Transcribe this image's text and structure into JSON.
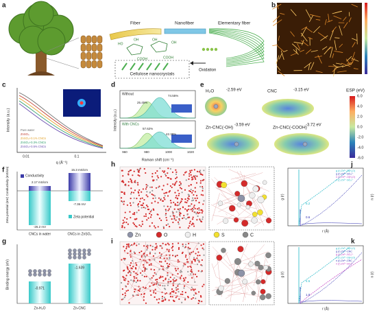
{
  "panels": {
    "a": {
      "label": "a",
      "fiber": "Fiber",
      "nanofiber": "Nanofiber",
      "elementary_fiber": "Elementary fiber",
      "oxidation": "Oxidation",
      "cnc": "Cellulose nanocrystals",
      "groups": [
        "HO",
        "OH",
        "COOH",
        "OH",
        "COOH",
        "OH"
      ]
    },
    "b": {
      "label": "b"
    },
    "c": {
      "label": "c",
      "y_label": "Intensity (a.u.)",
      "x_label": "q (Å⁻¹)",
      "x_ticks": [
        "0.01",
        "0.1"
      ],
      "legend": [
        "Pure water",
        "ZnSO₄",
        "ZnSO₄+0.1% CNCs",
        "ZnSO₄+0.3% CNCs",
        "ZnSO₄+0.5% CNCs"
      ]
    },
    "d": {
      "label": "d",
      "top": "Without",
      "bottom": "With CNCs",
      "top_left_pct": "25.45%",
      "top_right_pct": "74.55%",
      "bottom_left_pct": "57.62%",
      "bottom_right_pct": "42.38%",
      "x_ticks": [
        "960",
        "980",
        "1000",
        "1020"
      ],
      "x_label": "Raman shift (cm⁻¹)",
      "y_label": "Intensity (a.u.)"
    },
    "e": {
      "label": "e",
      "h2o": "H₂O",
      "h2o_energy": "-2.59 eV",
      "cnc": "CNC",
      "cnc_energy": "-3.15 eV",
      "zn_oh": "Zn-CNC(-OH)",
      "zn_oh_energy": "-3.59 eV",
      "zn_cooh": "Zn-CNC(-COOH)",
      "zn_cooh_energy": "-3.72 eV",
      "scale_title": "ESP (eV)",
      "scale_ticks": [
        "6.0",
        "4.0",
        "2.0",
        "0.0",
        "-2.0",
        "-4.0",
        "-6.0"
      ]
    },
    "f": {
      "label": "f",
      "y_label_top": "Conductivity (mS/cm)",
      "y_label_bottom": "Zeta potential (mV)",
      "legend_top": "Conductivity",
      "legend_bottom": "Zeta potential",
      "cond_water": "2.17 mS/cm",
      "cond_znso4": "15.3 mS/cm",
      "zeta_water": "-26.2 mV",
      "zeta_znso4": "-7.36 mV",
      "cat_water": "CNCs in water",
      "cat_znso4": "CNCs in ZnSO₄"
    },
    "g": {
      "label": "g",
      "y_label": "Binding energy (eV)",
      "value_h2o": "-0.971",
      "value_cnc": "-1.639",
      "cat_h2o": "Zn-H₂O",
      "cat_cnc": "Zn-CNC"
    },
    "h": {
      "label": "h"
    },
    "i": {
      "label": "i"
    },
    "atoms": [
      "Zn",
      "O",
      "H",
      "S",
      "C"
    ],
    "j": {
      "label": "j",
      "x_label": "r (Å)",
      "y_label": "g (r)",
      "y2_label": "n (r)",
      "legend": [
        "g (r) Zn²⁺-O(H₂O)",
        "g (r) Zn²⁺-SO₄²⁻",
        "n (r) Zn²⁺-O(H₂O)",
        "n (r) Zn²⁺-SO₄²⁻"
      ],
      "peak_a": "5.2",
      "peak_b": "0.6"
    },
    "k": {
      "label": "k",
      "x_label": "r (Å)",
      "y_label": "g (r)",
      "y2_label": "n (r)",
      "legend": [
        "g (r) Zn²⁺-O(H₂O)",
        "g (r) Zn²⁺-CNC",
        "g (r) Zn²⁺-SO₄²⁻",
        "n (r) Zn²⁺-O(H₂O)",
        "n (r) Zn²⁺-CNC",
        "n (r) Zn²⁺-SO₄²⁻"
      ],
      "peak_a": "4.5",
      "peak_b": "1.0"
    }
  }
}
